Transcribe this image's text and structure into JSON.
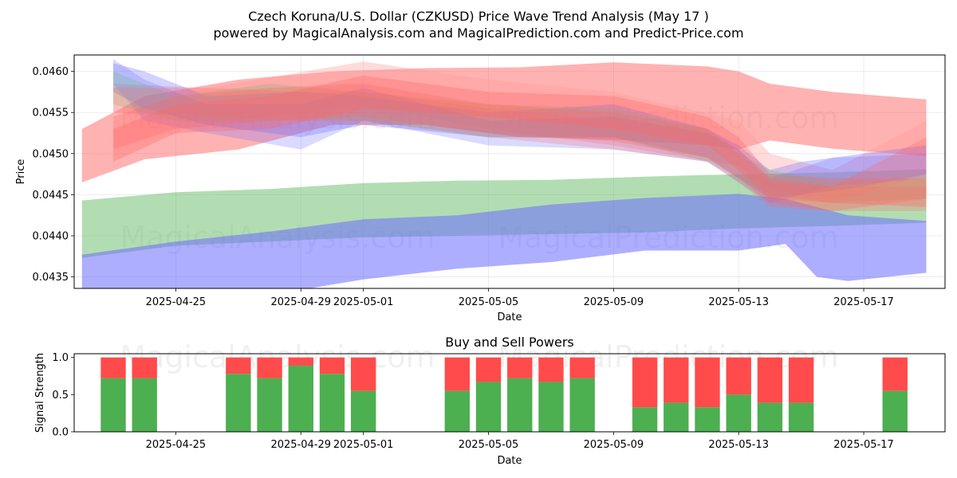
{
  "title_line1": "Czech Koruna/U.S. Dollar (CZKUSD) Price Wave Trend Analysis (May 17 )",
  "title_line2": "powered by MagicalAnalysis.com and MagicalPrediction.com and Predict-Price.com",
  "watermarks": [
    "MagicalAnalysis.com",
    "MagicalPrediction.com"
  ],
  "colors": {
    "green": "#4caf50",
    "red": "#ff4b4b",
    "blue": "#8080ff",
    "band_red": "#ff6666",
    "band_green": "#66bb66",
    "band_blue": "#6b6bff",
    "band_pink": "#ff9999"
  },
  "chart_data": [
    {
      "type": "area",
      "title": "",
      "xlabel": "Date",
      "ylabel": "Price",
      "x_start": "2025-04-22",
      "x_end": "2025-05-19",
      "xlim": [
        -0.25,
        27.6
      ],
      "ylim": [
        0.04336,
        0.0462
      ],
      "xticks": [
        {
          "x": 3,
          "label": "2025-04-25"
        },
        {
          "x": 7,
          "label": "2025-04-29"
        },
        {
          "x": 9,
          "label": "2025-05-01"
        },
        {
          "x": 13,
          "label": "2025-05-05"
        },
        {
          "x": 17,
          "label": "2025-05-09"
        },
        {
          "x": 21,
          "label": "2025-05-13"
        },
        {
          "x": 25,
          "label": "2025-05-17"
        }
      ],
      "yticks": [
        {
          "y": 0.0435,
          "label": "0.0435"
        },
        {
          "y": 0.044,
          "label": "0.0440"
        },
        {
          "y": 0.0445,
          "label": "0.0445"
        },
        {
          "y": 0.045,
          "label": "0.0450"
        },
        {
          "y": 0.0455,
          "label": "0.0455"
        },
        {
          "y": 0.046,
          "label": "0.0460"
        }
      ],
      "bands": [
        {
          "name": "green-lower-band",
          "color": "band_green",
          "opacity": 0.5,
          "x": [
            0,
            3,
            6,
            9,
            12,
            15,
            18,
            21,
            24,
            27
          ],
          "upper": [
            0.04443,
            0.04453,
            0.04457,
            0.04464,
            0.04467,
            0.04468,
            0.04472,
            0.04475,
            0.04477,
            0.04481
          ],
          "lower": [
            0.04373,
            0.04388,
            0.04393,
            0.04398,
            0.044,
            0.04402,
            0.04404,
            0.04409,
            0.04412,
            0.04416
          ]
        },
        {
          "name": "blue-lower-band",
          "color": "band_blue",
          "opacity": 0.55,
          "x": [
            0,
            3,
            6,
            9,
            12,
            15,
            18,
            21,
            22.5,
            23.5,
            24.5,
            27
          ],
          "upper": [
            0.04377,
            0.04393,
            0.04405,
            0.0442,
            0.04425,
            0.04438,
            0.04446,
            0.04451,
            0.04445,
            0.04435,
            0.04425,
            0.04418
          ],
          "lower": [
            0.0433,
            0.04325,
            0.04328,
            0.04347,
            0.0436,
            0.04368,
            0.04382,
            0.04382,
            0.0439,
            0.0435,
            0.04345,
            0.04355
          ]
        },
        {
          "name": "red-wide-band",
          "color": "band_red",
          "opacity": 0.5,
          "x": [
            0,
            2,
            5,
            8,
            11,
            14,
            17,
            20,
            21,
            22,
            24,
            27
          ],
          "upper": [
            0.0453,
            0.0457,
            0.0459,
            0.046,
            0.04604,
            0.04605,
            0.04611,
            0.04606,
            0.046,
            0.04585,
            0.04575,
            0.04566
          ],
          "lower": [
            0.04465,
            0.04493,
            0.04505,
            0.04535,
            0.04535,
            0.0452,
            0.04517,
            0.0451,
            0.04505,
            0.04516,
            0.04506,
            0.04497
          ]
        },
        {
          "name": "pink-band-1",
          "color": "band_pink",
          "opacity": 0.35,
          "x": [
            1,
            4,
            9,
            13,
            17,
            21,
            22,
            24,
            27
          ],
          "upper": [
            0.04585,
            0.0458,
            0.04612,
            0.0459,
            0.04575,
            0.0454,
            0.045,
            0.0448,
            0.0454
          ],
          "lower": [
            0.0455,
            0.04535,
            0.0456,
            0.0453,
            0.0451,
            0.04485,
            0.04455,
            0.0444,
            0.04475
          ]
        },
        {
          "name": "blue-wave-1",
          "color": "band_blue",
          "opacity": 0.3,
          "x": [
            1,
            2,
            4,
            7,
            9,
            13,
            17,
            20,
            21,
            22,
            23,
            25,
            27
          ],
          "upper": [
            0.0461,
            0.046,
            0.0457,
            0.04575,
            0.0457,
            0.0455,
            0.0456,
            0.0453,
            0.0451,
            0.0448,
            0.0449,
            0.045,
            0.0451
          ],
          "lower": [
            0.04575,
            0.04555,
            0.04535,
            0.0452,
            0.04535,
            0.0452,
            0.0452,
            0.04495,
            0.0447,
            0.04445,
            0.0445,
            0.0446,
            0.04475
          ]
        },
        {
          "name": "blue-wave-2",
          "color": "band_blue",
          "opacity": 0.25,
          "x": [
            1,
            2,
            4,
            7,
            9,
            13,
            17,
            20,
            21,
            22,
            24,
            27
          ],
          "upper": [
            0.04615,
            0.0459,
            0.0456,
            0.0456,
            0.0458,
            0.0454,
            0.04545,
            0.04525,
            0.04505,
            0.0447,
            0.04495,
            0.045
          ],
          "lower": [
            0.04585,
            0.0454,
            0.04525,
            0.04505,
            0.0454,
            0.0451,
            0.04505,
            0.0449,
            0.04465,
            0.0444,
            0.0446,
            0.0447
          ]
        },
        {
          "name": "grey-wave",
          "color": "band_green",
          "opacity": 0.25,
          "x": [
            1,
            3,
            6,
            9,
            13,
            17,
            20,
            21,
            22,
            24,
            27
          ],
          "upper": [
            0.046,
            0.0457,
            0.04585,
            0.04575,
            0.0456,
            0.04555,
            0.0453,
            0.045,
            0.0448,
            0.04465,
            0.0447
          ],
          "lower": [
            0.0456,
            0.0454,
            0.0454,
            0.0454,
            0.0452,
            0.0452,
            0.0449,
            0.0447,
            0.0445,
            0.0444,
            0.04445
          ]
        },
        {
          "name": "red-wave-1",
          "color": "band_red",
          "opacity": 0.35,
          "x": [
            1,
            3,
            6,
            9,
            13,
            17,
            20,
            21,
            22,
            24,
            27
          ],
          "upper": [
            0.0453,
            0.0456,
            0.0457,
            0.04595,
            0.04575,
            0.0457,
            0.04545,
            0.0452,
            0.04475,
            0.0447,
            0.0447
          ],
          "lower": [
            0.0449,
            0.04525,
            0.0453,
            0.04555,
            0.04545,
            0.0453,
            0.0451,
            0.0448,
            0.04445,
            0.0444,
            0.04435
          ]
        },
        {
          "name": "red-wave-2",
          "color": "band_red",
          "opacity": 0.3,
          "x": [
            1,
            3,
            6,
            9,
            13,
            17,
            20,
            21,
            22,
            24,
            27
          ],
          "upper": [
            0.04545,
            0.0457,
            0.0458,
            0.04585,
            0.0456,
            0.0455,
            0.0453,
            0.04505,
            0.0447,
            0.0446,
            0.0452
          ],
          "lower": [
            0.04505,
            0.0453,
            0.0454,
            0.04545,
            0.04525,
            0.04515,
            0.04495,
            0.0447,
            0.0444,
            0.0443,
            0.04445
          ]
        },
        {
          "name": "orange-wave",
          "color": "band_red",
          "opacity": 0.25,
          "x": [
            1,
            4,
            7,
            9,
            13,
            17,
            20,
            21,
            22,
            24,
            27
          ],
          "upper": [
            0.0458,
            0.0458,
            0.04575,
            0.04575,
            0.04555,
            0.0454,
            0.04525,
            0.045,
            0.04465,
            0.0446,
            0.0446
          ],
          "lower": [
            0.0455,
            0.04545,
            0.0454,
            0.0454,
            0.0452,
            0.04505,
            0.0449,
            0.04465,
            0.04435,
            0.0443,
            0.0443
          ]
        }
      ]
    },
    {
      "type": "bar",
      "title": "Buy and Sell Powers",
      "xlabel": "Date",
      "ylabel": "Signal Strength",
      "xlim": [
        -0.25,
        27.6
      ],
      "ylim": [
        0,
        1.05
      ],
      "yticks": [
        {
          "y": 0.0,
          "label": "0.0"
        },
        {
          "y": 0.5,
          "label": "0.5"
        },
        {
          "y": 1.0,
          "label": "1.0"
        }
      ],
      "xticks": [
        {
          "x": 3,
          "label": "2025-04-25"
        },
        {
          "x": 7,
          "label": "2025-04-29"
        },
        {
          "x": 9,
          "label": "2025-05-01"
        },
        {
          "x": 13,
          "label": "2025-05-05"
        },
        {
          "x": 17,
          "label": "2025-05-09"
        },
        {
          "x": 21,
          "label": "2025-05-13"
        },
        {
          "x": 25,
          "label": "2025-05-17"
        }
      ],
      "series": [
        {
          "name": "Buy",
          "color": "green"
        },
        {
          "name": "Sell",
          "color": "red"
        }
      ],
      "x": [
        1,
        2,
        5,
        6,
        7,
        8,
        9,
        12,
        13,
        14,
        15,
        16,
        18,
        19,
        20,
        21,
        22,
        23,
        26
      ],
      "buy": [
        0.72,
        0.72,
        0.78,
        0.72,
        0.89,
        0.78,
        0.55,
        0.55,
        0.67,
        0.72,
        0.67,
        0.72,
        0.33,
        0.39,
        0.33,
        0.5,
        0.39,
        0.39,
        0.55
      ],
      "total": [
        1,
        1,
        1,
        1,
        1,
        1,
        1,
        1,
        1,
        1,
        1,
        1,
        1,
        1,
        1,
        1,
        1,
        1,
        1
      ]
    }
  ]
}
